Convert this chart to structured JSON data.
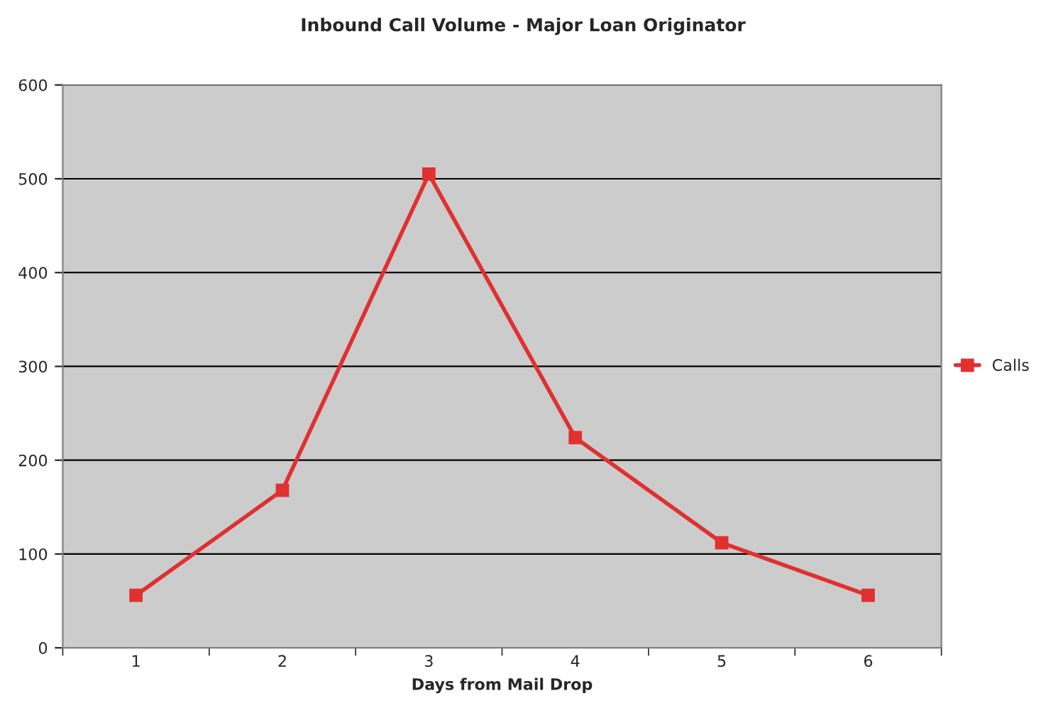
{
  "chart_data": {
    "type": "line",
    "title": "Inbound Call Volume - Major Loan Originator",
    "xlabel": "Days from Mail Drop",
    "categories": [
      "1",
      "2",
      "3",
      "4",
      "5",
      "6"
    ],
    "series": [
      {
        "name": "Calls",
        "color": "#e03030",
        "values": [
          56,
          168,
          505,
          224,
          112,
          56
        ]
      }
    ],
    "ylim": [
      0,
      600
    ],
    "yticks": [
      0,
      100,
      200,
      300,
      400,
      500,
      600
    ],
    "grid": "y",
    "legend": "right",
    "marker": "square",
    "line_style": "solid"
  }
}
